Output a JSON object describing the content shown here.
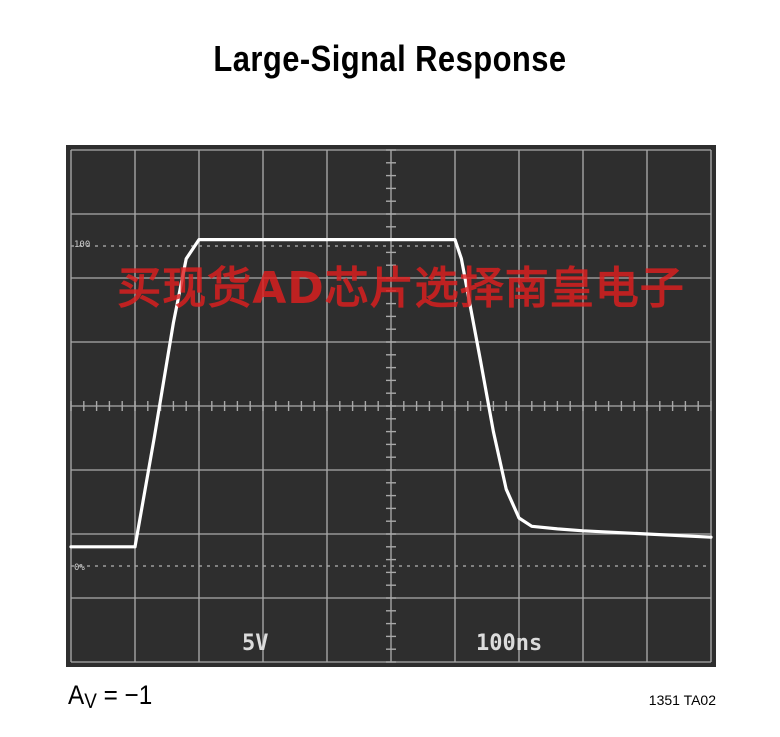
{
  "title": "Large-Signal Response",
  "gain_label": {
    "prefix": "A",
    "subscript": "V",
    "suffix": " = −1"
  },
  "figure_id": "1351 TA02",
  "watermark": "买现货AD芯片选择南皇电子",
  "colors": {
    "screen": "#2e2e2e",
    "graticule": "#a9a9a9",
    "trace": "#ffffff",
    "watermark": "#de1e1e",
    "readout": "#dcdcdc"
  },
  "chart_data": {
    "type": "line",
    "title": "Large-Signal Response",
    "divisions": {
      "horizontal": 10,
      "vertical": 8
    },
    "readouts": {
      "vertical_scale": "5V",
      "time_scale": "100ns"
    },
    "reference_markers": [
      "100",
      "0%"
    ],
    "grid": true,
    "series": [
      {
        "x": [
          0,
          1.0,
          1.3,
          1.6,
          1.8,
          2.0,
          2.2,
          2.6,
          3.0,
          5.0,
          6.0,
          6.1,
          6.4,
          6.6,
          6.8,
          7.0,
          7.2,
          7.6,
          8.0,
          9.0,
          10.0
        ],
        "y": [
          -2.2,
          -2.2,
          -0.5,
          1.3,
          2.3,
          2.6,
          2.6,
          2.6,
          2.6,
          2.6,
          2.6,
          2.3,
          0.7,
          -0.4,
          -1.3,
          -1.75,
          -1.88,
          -1.92,
          -1.95,
          -2.0,
          -2.05
        ]
      }
    ]
  }
}
